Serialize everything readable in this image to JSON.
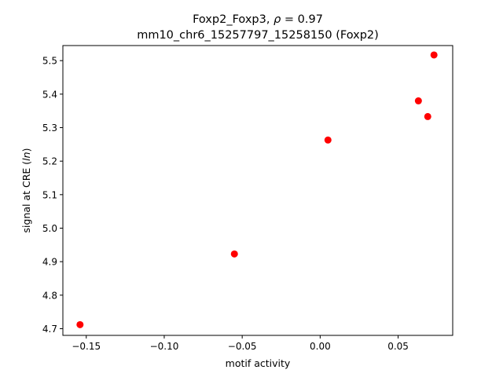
{
  "chart_data": {
    "type": "scatter",
    "title_line1_prefix": "Foxp2_Foxp3, ",
    "title_line1_rho": "ρ",
    "title_line1_suffix": " = 0.97",
    "title_line2": "mm10_chr6_15257797_15258150 (Foxp2)",
    "xlabel": "motif activity",
    "ylabel_prefix": "signal at CRE (",
    "ylabel_var": "ln",
    "ylabel_suffix": ")",
    "xlim": [
      -0.165,
      0.085
    ],
    "ylim": [
      4.68,
      5.545
    ],
    "xticks": [
      -0.15,
      -0.1,
      -0.05,
      0.0,
      0.05
    ],
    "xtick_labels": [
      "−0.15",
      "−0.10",
      "−0.05",
      "0.00",
      "0.05"
    ],
    "yticks": [
      4.7,
      4.8,
      4.9,
      5.0,
      5.1,
      5.2,
      5.3,
      5.4,
      5.5
    ],
    "ytick_labels": [
      "4.7",
      "4.8",
      "4.9",
      "5.0",
      "5.1",
      "5.2",
      "5.3",
      "5.4",
      "5.5"
    ],
    "marker_color": "#ff0000",
    "grid": false,
    "points": [
      {
        "x": -0.154,
        "y": 4.712
      },
      {
        "x": -0.055,
        "y": 4.923
      },
      {
        "x": 0.005,
        "y": 5.263
      },
      {
        "x": 0.063,
        "y": 5.38
      },
      {
        "x": 0.069,
        "y": 5.333
      },
      {
        "x": 0.073,
        "y": 5.517
      }
    ]
  }
}
